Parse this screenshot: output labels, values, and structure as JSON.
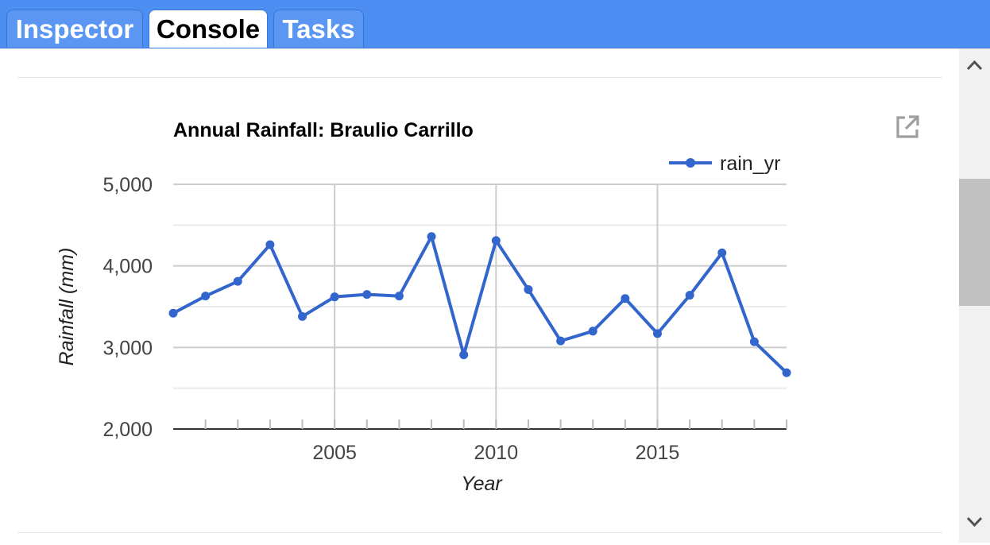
{
  "tabs": [
    {
      "label": "Inspector",
      "active": false
    },
    {
      "label": "Console",
      "active": true
    },
    {
      "label": "Tasks",
      "active": false
    }
  ],
  "icons": {
    "open_in_new": "open-in-new-icon",
    "scroll_up": "chevron-up-icon",
    "scroll_down": "chevron-down-icon"
  },
  "colors": {
    "tab_bar": "#4d8ef2",
    "series": "#3366cc"
  },
  "chart_data": {
    "type": "line",
    "title": "Annual Rainfall: Braulio Carrillo",
    "xlabel": "Year",
    "ylabel": "Rainfall (mm)",
    "xlim": [
      2000,
      2019
    ],
    "ylim": [
      2000,
      5000
    ],
    "y_ticks": [
      2000,
      3000,
      4000,
      5000
    ],
    "y_tick_labels": [
      "2,000",
      "3,000",
      "4,000",
      "5,000"
    ],
    "x_ticks": [
      2005,
      2010,
      2015
    ],
    "x_tick_labels": [
      "2005",
      "2010",
      "2015"
    ],
    "grid": true,
    "legend_position": "top-right",
    "x": [
      2000,
      2001,
      2002,
      2003,
      2004,
      2005,
      2006,
      2007,
      2008,
      2009,
      2010,
      2011,
      2012,
      2013,
      2014,
      2015,
      2016,
      2017,
      2018,
      2019
    ],
    "series": [
      {
        "name": "rain_yr",
        "color": "#3366cc",
        "values": [
          3420,
          3630,
          3810,
          4260,
          3380,
          3620,
          3650,
          3630,
          4360,
          2910,
          4310,
          3710,
          3080,
          3200,
          3600,
          3170,
          3640,
          4160,
          3070,
          2690
        ]
      }
    ]
  }
}
